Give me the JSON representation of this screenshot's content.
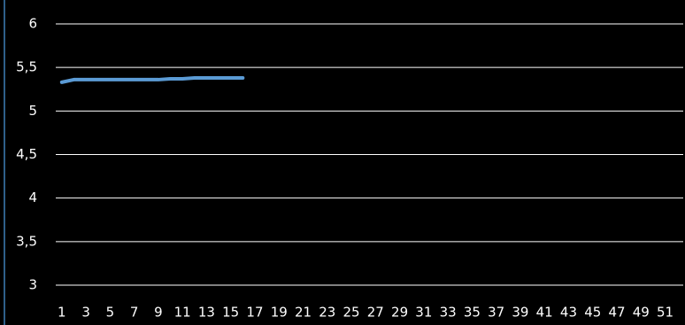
{
  "chart_data": {
    "type": "line",
    "categories": [
      "1",
      null,
      "3",
      null,
      "5",
      null,
      "7",
      null,
      "9",
      null,
      "11",
      null,
      "13",
      null,
      "15",
      null,
      "17",
      null,
      "19",
      null,
      "21",
      null,
      "23",
      null,
      "25",
      null,
      "27",
      null,
      "29",
      null,
      "31",
      null,
      "33",
      null,
      "35",
      null,
      "37",
      null,
      "39",
      null,
      "41",
      null,
      "43",
      null,
      "45",
      null,
      "47",
      null,
      "49",
      null,
      "51",
      null
    ],
    "series": [
      {
        "color": "#5b9bd5",
        "values": [
          5.33,
          5.36,
          5.36,
          5.36,
          5.36,
          5.36,
          5.36,
          5.36,
          5.36,
          5.37,
          5.37,
          5.38,
          5.38,
          5.38,
          5.38,
          5.38,
          null,
          null,
          null,
          null,
          null,
          null,
          null,
          null,
          null,
          null,
          null,
          null,
          null,
          null,
          null,
          null,
          null,
          null,
          null,
          null,
          null,
          null,
          null,
          null,
          null,
          null,
          null,
          null,
          null,
          null,
          null,
          null,
          null,
          null,
          null,
          null
        ]
      }
    ],
    "ylim": [
      3,
      6
    ],
    "yticks": [
      3,
      {
        "value": 3.5,
        "label": "3,5"
      },
      4,
      {
        "value": 4.5,
        "label": "4,5"
      },
      5,
      {
        "value": 5.5,
        "label": "5,5"
      },
      6
    ],
    "grid": true
  }
}
